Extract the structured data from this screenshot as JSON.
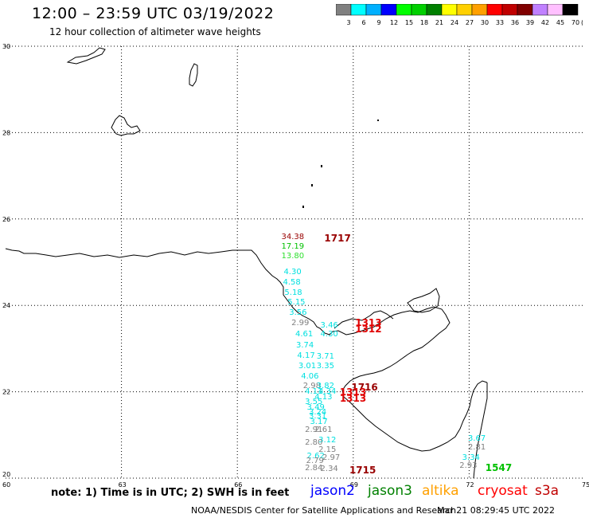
{
  "title": "12:00 – 23:59 UTC 03/19/2022",
  "subtitle": "12 hour collection of altimeter wave heights",
  "scale": {
    "unit": "(ft)",
    "ticks": [
      "3",
      "6",
      "9",
      "12",
      "15",
      "18",
      "21",
      "24",
      "27",
      "30",
      "33",
      "36",
      "39",
      "42",
      "45",
      "70"
    ],
    "colors": [
      "#808080",
      "#00ffff",
      "#00b0ff",
      "#0000ff",
      "#00ff00",
      "#00d000",
      "#008000",
      "#ffff00",
      "#ffd000",
      "#ffa000",
      "#ff0000",
      "#c00000",
      "#800000",
      "#c080ff",
      "#ffc0ff",
      "#000000"
    ]
  },
  "axes": {
    "lat": [
      "30",
      "28",
      "26",
      "24",
      "22",
      "20"
    ],
    "lon": [
      "60",
      "63",
      "66",
      "69",
      "72",
      "75"
    ]
  },
  "colors": {
    "gray": "#808080",
    "cyan": "#00e0e0",
    "green": "#00c000",
    "lightgreen": "#30e030",
    "darkred": "#990000",
    "red": "#e00000"
  },
  "observations": [
    {
      "v": "34.38",
      "lon": 67.14,
      "lat": 25.55,
      "c": "darkred"
    },
    {
      "v": "1717",
      "lon": 68.25,
      "lat": 25.55,
      "c": "darkred",
      "big": true
    },
    {
      "v": "17.19",
      "lon": 67.14,
      "lat": 25.33,
      "c": "green"
    },
    {
      "v": "13.80",
      "lon": 67.14,
      "lat": 25.11,
      "c": "lightgreen"
    },
    {
      "v": "4.30",
      "lon": 67.2,
      "lat": 24.74,
      "c": "cyan"
    },
    {
      "v": "4.58",
      "lon": 67.18,
      "lat": 24.51,
      "c": "cyan"
    },
    {
      "v": "5.18",
      "lon": 67.22,
      "lat": 24.27,
      "c": "cyan"
    },
    {
      "v": "5.15",
      "lon": 67.3,
      "lat": 24.04,
      "c": "cyan"
    },
    {
      "v": "3.56",
      "lon": 67.34,
      "lat": 23.8,
      "c": "cyan"
    },
    {
      "v": "2.99",
      "lon": 67.4,
      "lat": 23.56,
      "c": "gray"
    },
    {
      "v": "3.46",
      "lon": 68.15,
      "lat": 23.5,
      "c": "cyan"
    },
    {
      "v": "1313",
      "lon": 69.05,
      "lat": 23.6,
      "c": "red",
      "big": true
    },
    {
      "v": "1312",
      "lon": 69.05,
      "lat": 23.45,
      "c": "red",
      "big": true
    },
    {
      "v": "4.30",
      "lon": 68.15,
      "lat": 23.3,
      "c": "cyan"
    },
    {
      "v": "4.61",
      "lon": 67.5,
      "lat": 23.3,
      "c": "cyan"
    },
    {
      "v": "3.74",
      "lon": 67.52,
      "lat": 23.05,
      "c": "cyan"
    },
    {
      "v": "4.17",
      "lon": 67.55,
      "lat": 22.8,
      "c": "cyan"
    },
    {
      "v": "3.71",
      "lon": 68.05,
      "lat": 22.78,
      "c": "cyan"
    },
    {
      "v": "3.01",
      "lon": 67.58,
      "lat": 22.57,
      "c": "cyan"
    },
    {
      "v": "3.35",
      "lon": 68.05,
      "lat": 22.57,
      "c": "cyan"
    },
    {
      "v": "4.06",
      "lon": 67.65,
      "lat": 22.33,
      "c": "cyan"
    },
    {
      "v": "2.98",
      "lon": 67.7,
      "lat": 22.1,
      "c": "gray"
    },
    {
      "v": "3.82",
      "lon": 68.05,
      "lat": 22.1,
      "c": "cyan"
    },
    {
      "v": "1716",
      "lon": 68.95,
      "lat": 22.1,
      "c": "darkred",
      "big": true
    },
    {
      "v": "4.11",
      "lon": 67.75,
      "lat": 21.97,
      "c": "cyan"
    },
    {
      "v": "4.34",
      "lon": 68.1,
      "lat": 21.97,
      "c": "cyan"
    },
    {
      "v": "1313",
      "lon": 68.65,
      "lat": 21.99,
      "c": "red",
      "big": true
    },
    {
      "v": "4.13",
      "lon": 68.0,
      "lat": 21.85,
      "c": "cyan"
    },
    {
      "v": "1313",
      "lon": 68.65,
      "lat": 21.85,
      "c": "red",
      "big": true
    },
    {
      "v": "3.55",
      "lon": 67.75,
      "lat": 21.73,
      "c": "cyan"
    },
    {
      "v": "3.49",
      "lon": 67.8,
      "lat": 21.6,
      "c": "cyan"
    },
    {
      "v": "3.24",
      "lon": 67.85,
      "lat": 21.5,
      "c": "cyan"
    },
    {
      "v": "3.31",
      "lon": 67.85,
      "lat": 21.4,
      "c": "cyan"
    },
    {
      "v": "3.17",
      "lon": 67.88,
      "lat": 21.28,
      "c": "cyan"
    },
    {
      "v": "2.91",
      "lon": 67.75,
      "lat": 21.08,
      "c": "gray"
    },
    {
      "v": "2.61",
      "lon": 68.0,
      "lat": 21.08,
      "c": "gray"
    },
    {
      "v": "3.12",
      "lon": 68.1,
      "lat": 20.85,
      "c": "cyan"
    },
    {
      "v": "2.80",
      "lon": 67.75,
      "lat": 20.8,
      "c": "gray"
    },
    {
      "v": "2.15",
      "lon": 68.1,
      "lat": 20.63,
      "c": "gray"
    },
    {
      "v": "2.62",
      "lon": 67.8,
      "lat": 20.48,
      "c": "cyan"
    },
    {
      "v": "2.97",
      "lon": 68.2,
      "lat": 20.45,
      "c": "gray"
    },
    {
      "v": "2.79",
      "lon": 67.78,
      "lat": 20.37,
      "c": "gray"
    },
    {
      "v": "2.84",
      "lon": 67.75,
      "lat": 20.2,
      "c": "gray"
    },
    {
      "v": "2.34",
      "lon": 68.15,
      "lat": 20.18,
      "c": "gray"
    },
    {
      "v": "1715",
      "lon": 68.9,
      "lat": 20.18,
      "c": "darkred",
      "big": true
    },
    {
      "v": "3.67",
      "lon": 71.97,
      "lat": 20.88,
      "c": "cyan"
    },
    {
      "v": "2.81",
      "lon": 71.97,
      "lat": 20.68,
      "c": "gray"
    },
    {
      "v": "3.34",
      "lon": 71.82,
      "lat": 20.45,
      "c": "cyan"
    },
    {
      "v": "2.93",
      "lon": 71.75,
      "lat": 20.25,
      "c": "gray"
    },
    {
      "v": "1547",
      "lon": 72.42,
      "lat": 20.24,
      "c": "green",
      "big": true
    }
  ],
  "note": "note: 1) Time is in UTC; 2) SWH is in feet",
  "satellites": [
    {
      "name": "jason2",
      "color": "#0000ff"
    },
    {
      "name": "jason3",
      "color": "#008000"
    },
    {
      "name": "altika",
      "color": "#ffa000"
    },
    {
      "name": "cryosat",
      "color": "#ff0000"
    },
    {
      "name": "s3a",
      "color": "#c00000"
    }
  ],
  "credit": "NOAA/NESDIS Center for Satellite Applications and Research",
  "timestamp": "Mar 21 08:29:45 UTC 2022"
}
